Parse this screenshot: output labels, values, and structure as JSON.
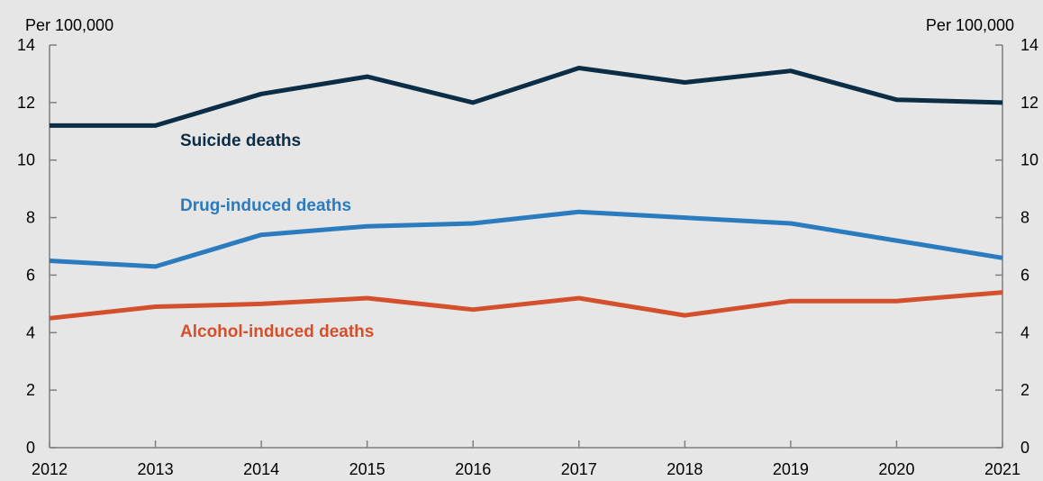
{
  "chart_data": {
    "type": "line",
    "x": [
      "2012",
      "2013",
      "2014",
      "2015",
      "2016",
      "2017",
      "2018",
      "2019",
      "2020",
      "2021"
    ],
    "left_axis_label": "Per 100,000",
    "right_axis_label": "Per 100,000",
    "ylim": [
      0,
      14
    ],
    "yticks": [
      "0",
      "2",
      "4",
      "6",
      "8",
      "10",
      "12",
      "14"
    ],
    "grid": false,
    "series": [
      {
        "name": "Suicide deaths",
        "color": "#0b2d45",
        "values": [
          11.2,
          11.2,
          12.3,
          12.9,
          12.0,
          13.2,
          12.7,
          13.1,
          12.1,
          12.0
        ]
      },
      {
        "name": "Drug-induced deaths",
        "color": "#2b7bbf",
        "values": [
          6.5,
          6.3,
          7.4,
          7.7,
          7.8,
          8.2,
          8.0,
          7.8,
          7.2,
          6.6
        ]
      },
      {
        "name": "Alcohol-induced deaths",
        "color": "#d4502c",
        "values": [
          4.5,
          4.9,
          5.0,
          5.2,
          4.8,
          5.2,
          4.6,
          5.1,
          5.1,
          5.4
        ]
      }
    ]
  }
}
